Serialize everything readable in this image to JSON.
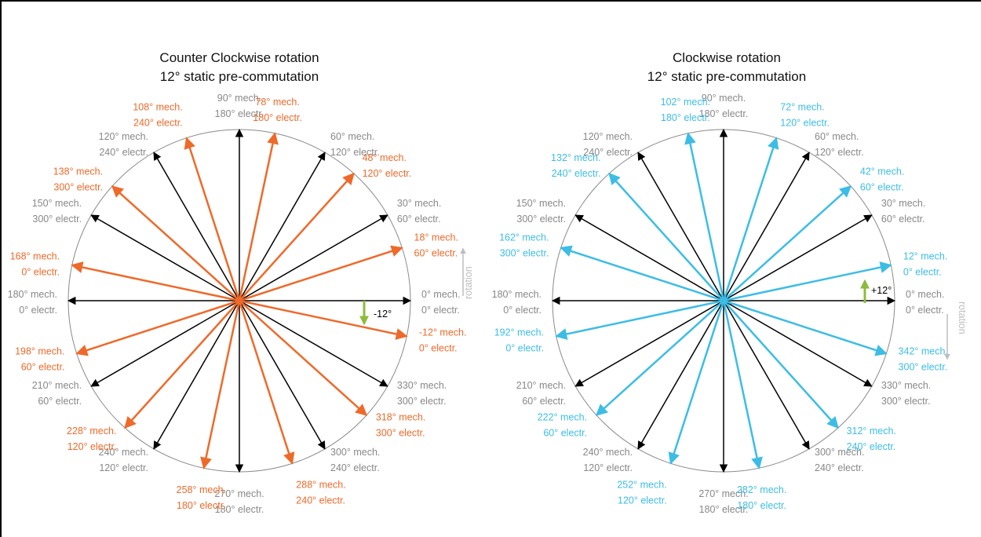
{
  "colors": {
    "orange": "#EE6A2A",
    "blue": "#3CBDE6",
    "black": "#000000",
    "gray": "#888888",
    "green": "#8DBB3C",
    "circle": "#8a8a8a",
    "rotation_arrow": "#bdbdbd"
  },
  "diagrams": [
    {
      "id": "ccw",
      "title_line1": "Counter Clockwise rotation",
      "title_line2": "12° static pre-commutation",
      "rotation_label": "rotation",
      "offset_label": "-12°",
      "black_labels": [
        {
          "mech": "0° mech.",
          "elec": "0° electr."
        },
        {
          "mech": "30° mech.",
          "elec": "60° electr."
        },
        {
          "mech": "60° mech.",
          "elec": "120° electr."
        },
        {
          "mech": "90° mech.",
          "elec": "180° electr."
        },
        {
          "mech": "120° mech.",
          "elec": "240° electr."
        },
        {
          "mech": "150° mech.",
          "elec": "300° electr."
        },
        {
          "mech": "180° mech.",
          "elec": "0° electr."
        },
        {
          "mech": "210° mech.",
          "elec": "60° electr."
        },
        {
          "mech": "240° mech.",
          "elec": "120° electr."
        },
        {
          "mech": "270° mech.",
          "elec": "180° electr."
        },
        {
          "mech": "300° mech.",
          "elec": "240° electr."
        },
        {
          "mech": "330° mech.",
          "elec": "300° electr."
        }
      ],
      "colored_labels": [
        {
          "mech": "-12° mech.",
          "elec": "0° electr."
        },
        {
          "mech": "18° mech.",
          "elec": "60° electr."
        },
        {
          "mech": "48° mech.",
          "elec": "120° electr."
        },
        {
          "mech": "78° mech.",
          "elec": "180° electr."
        },
        {
          "mech": "108° mech.",
          "elec": "240° electr."
        },
        {
          "mech": "138° mech.",
          "elec": "300° electr."
        },
        {
          "mech": "168° mech.",
          "elec": "0° electr."
        },
        {
          "mech": "198° mech.",
          "elec": "60° electr."
        },
        {
          "mech": "228° mech.",
          "elec": "120° electr."
        },
        {
          "mech": "258° mech.",
          "elec": "180° electr."
        },
        {
          "mech": "288° mech.",
          "elec": "240° electr."
        },
        {
          "mech": "318° mech.",
          "elec": "300° electr."
        }
      ]
    },
    {
      "id": "cw",
      "title_line1": "Clockwise rotation",
      "title_line2": "12° static pre-commutation",
      "rotation_label": "rotation",
      "offset_label": "+12°",
      "black_labels": [
        {
          "mech": "0° mech.",
          "elec": "0° electr."
        },
        {
          "mech": "30° mech.",
          "elec": "60° electr."
        },
        {
          "mech": "60° mech.",
          "elec": "120° electr."
        },
        {
          "mech": "90° mech.",
          "elec": "180° electr."
        },
        {
          "mech": "120° mech.",
          "elec": "240° electr."
        },
        {
          "mech": "150° mech.",
          "elec": "300° electr."
        },
        {
          "mech": "180° mech.",
          "elec": "0° electr."
        },
        {
          "mech": "210° mech.",
          "elec": "60° electr."
        },
        {
          "mech": "240° mech.",
          "elec": "120° electr."
        },
        {
          "mech": "270° mech.",
          "elec": "180° electr."
        },
        {
          "mech": "300° mech.",
          "elec": "240° electr."
        },
        {
          "mech": "330° mech.",
          "elec": "300° electr."
        }
      ],
      "colored_labels": [
        {
          "mech": "12° mech.",
          "elec": "0° electr."
        },
        {
          "mech": "42° mech.",
          "elec": "60° electr."
        },
        {
          "mech": "72° mech.",
          "elec": "120° electr."
        },
        {
          "mech": "102° mech.",
          "elec": "180° electr."
        },
        {
          "mech": "132° mech.",
          "elec": "240° electr."
        },
        {
          "mech": "162° mech.",
          "elec": "300° electr."
        },
        {
          "mech": "192° mech.",
          "elec": "0° electr."
        },
        {
          "mech": "222° mech.",
          "elec": "60° electr."
        },
        {
          "mech": "252° mech.",
          "elec": "120° electr."
        },
        {
          "mech": "282° mech.",
          "elec": "180° electr."
        },
        {
          "mech": "312° mech.",
          "elec": "240° electr."
        },
        {
          "mech": "342° mech.",
          "elec": "300° electr."
        }
      ]
    }
  ]
}
